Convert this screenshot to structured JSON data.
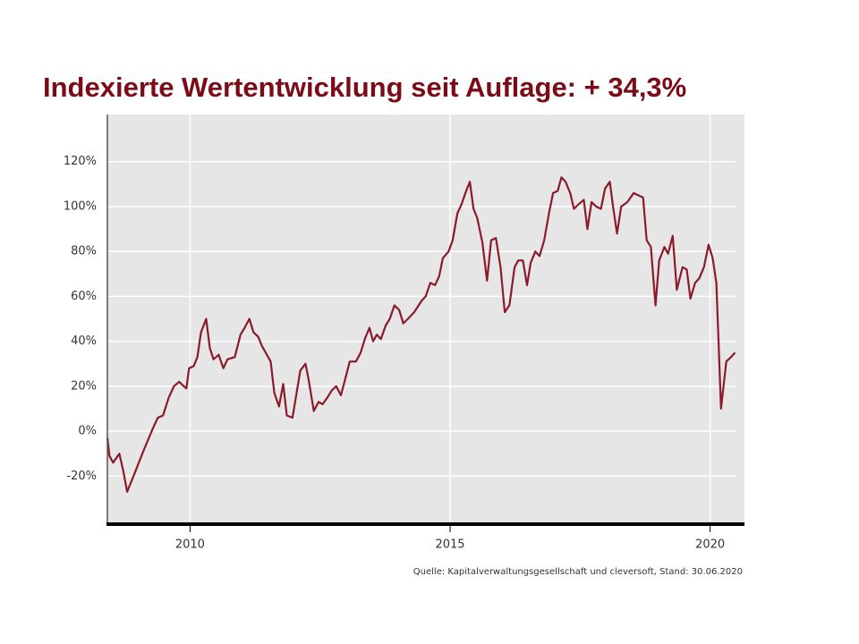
{
  "chart_data": {
    "type": "line",
    "title": "Indexierte Wertentwicklung seit Auflage: + 34,3%",
    "source": "Quelle: Kapitalverwaltungsgesellschaft und cleversoft, Stand: 30.06.2020",
    "x": [
      2008.41,
      2008.45,
      2008.52,
      2008.64,
      2008.71,
      2008.79,
      2008.93,
      2009.1,
      2009.28,
      2009.38,
      2009.48,
      2009.59,
      2009.69,
      2009.79,
      2009.88,
      2009.93,
      2009.98,
      2010.07,
      2010.14,
      2010.21,
      2010.31,
      2010.38,
      2010.45,
      2010.55,
      2010.64,
      2010.72,
      2010.86,
      2010.97,
      2011.05,
      2011.14,
      2011.22,
      2011.31,
      2011.38,
      2011.55,
      2011.62,
      2011.71,
      2011.79,
      2011.86,
      2011.97,
      2012.12,
      2012.22,
      2012.28,
      2012.38,
      2012.47,
      2012.55,
      2012.64,
      2012.72,
      2012.81,
      2012.9,
      2012.97,
      2013.07,
      2013.19,
      2013.28,
      2013.36,
      2013.45,
      2013.52,
      2013.59,
      2013.67,
      2013.76,
      2013.84,
      2013.93,
      2014.02,
      2014.1,
      2014.19,
      2014.31,
      2014.45,
      2014.53,
      2014.62,
      2014.71,
      2014.79,
      2014.86,
      2014.97,
      2015.05,
      2015.14,
      2015.22,
      2015.31,
      2015.38,
      2015.45,
      2015.52,
      2015.62,
      2015.71,
      2015.79,
      2015.88,
      2015.97,
      2016.05,
      2016.14,
      2016.24,
      2016.31,
      2016.4,
      2016.48,
      2016.55,
      2016.64,
      2016.72,
      2016.81,
      2016.9,
      2016.98,
      2017.07,
      2017.14,
      2017.22,
      2017.31,
      2017.38,
      2017.47,
      2017.57,
      2017.64,
      2017.72,
      2017.81,
      2017.9,
      2017.98,
      2018.07,
      2018.14,
      2018.21,
      2018.29,
      2018.41,
      2018.53,
      2018.62,
      2018.71,
      2018.78,
      2018.86,
      2018.95,
      2019.02,
      2019.12,
      2019.19,
      2019.28,
      2019.36,
      2019.47,
      2019.55,
      2019.62,
      2019.71,
      2019.79,
      2019.88,
      2019.97,
      2020.05,
      2020.12,
      2020.21,
      2020.31,
      2020.4,
      2020.48
    ],
    "series": [
      {
        "color": "#8b1a2b",
        "values": [
          -3,
          -11,
          -14,
          -10,
          -17,
          -27,
          -19,
          -9,
          1,
          6,
          7,
          15,
          20,
          22,
          20,
          19,
          28,
          29,
          33,
          44,
          50,
          37,
          32,
          34,
          28,
          32,
          33,
          43,
          46,
          50,
          44,
          42,
          38,
          31,
          17,
          11,
          21,
          7,
          6,
          27,
          30,
          23,
          9,
          13,
          12,
          15,
          18,
          20,
          16,
          22,
          31,
          31,
          35,
          41,
          46,
          40,
          43,
          41,
          47,
          50,
          56,
          54,
          48,
          50,
          53,
          58,
          60,
          66,
          65,
          69,
          77,
          80,
          85,
          97,
          101,
          107,
          111,
          99,
          95,
          84,
          67,
          85,
          86,
          73,
          53,
          56,
          73,
          76,
          76,
          65,
          75,
          80,
          78,
          85,
          97,
          106,
          107,
          113,
          111,
          106,
          99,
          101,
          103,
          90,
          102,
          100,
          99,
          108,
          111,
          99,
          88,
          100,
          102,
          106,
          105,
          104,
          85,
          82,
          56,
          76,
          82,
          79,
          87,
          63,
          73,
          72,
          59,
          66,
          68,
          73,
          83,
          77,
          66,
          10,
          31,
          33,
          35
        ]
      }
    ],
    "xlim": [
      2008.41,
      2020.66
    ],
    "xticks": [
      2010,
      2015,
      2020
    ],
    "ylim": [
      -41,
      141
    ],
    "yticks": [
      {
        "value": -20,
        "label": "-20%"
      },
      {
        "value": 0,
        "label": "0%"
      },
      {
        "value": 20,
        "label": "20%"
      },
      {
        "value": 40,
        "label": "40%"
      },
      {
        "value": 60,
        "label": "60%"
      },
      {
        "value": 80,
        "label": "80%"
      },
      {
        "value": 100,
        "label": "100%"
      },
      {
        "value": 120,
        "label": "120%"
      }
    ],
    "grid": true
  }
}
